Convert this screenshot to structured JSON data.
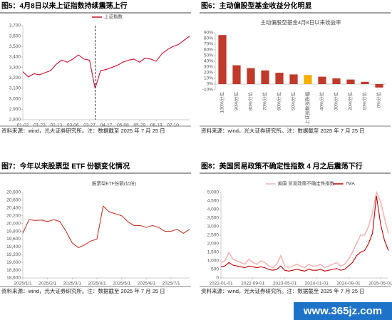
{
  "chart_data": [
    {
      "type": "line",
      "title": "图5：4月8日以来上证指数持续震荡上行",
      "categories": [
        "01-02",
        null,
        null,
        "01-23",
        null,
        null,
        "02-13",
        null,
        null,
        "03-06",
        null,
        null,
        "03-27",
        null,
        null,
        "04-17",
        null,
        null,
        "05-08",
        null,
        null,
        "05-29",
        null,
        null,
        "06-19",
        null,
        null,
        "07-10",
        null,
        null,
        null
      ],
      "series": [
        {
          "name": "上证指数",
          "color": "#c8102e",
          "values": [
            3260,
            3210,
            3240,
            3230,
            3250,
            3270,
            3330,
            3370,
            3350,
            3380,
            3420,
            3380,
            3370,
            3100,
            3270,
            3280,
            3300,
            3320,
            3350,
            3370,
            3380,
            3350,
            3390,
            3380,
            3360,
            3430,
            3470,
            3500,
            3520,
            3560,
            3600
          ]
        }
      ],
      "ylim": [
        2800,
        3700
      ],
      "yticks": [
        {
          "value": 2800,
          "label": "2,800"
        },
        {
          "value": 2900,
          "label": "2,900"
        },
        {
          "value": 3000,
          "label": "3,000"
        },
        {
          "value": 3100,
          "label": "3,100"
        },
        {
          "value": 3200,
          "label": "3,200"
        },
        {
          "value": 3300,
          "label": "3,300"
        },
        {
          "value": 3400,
          "label": "3,400"
        },
        {
          "value": 3500,
          "label": "3,500"
        },
        {
          "value": 3600,
          "label": "3,600"
        },
        {
          "value": 3700,
          "label": "3,700"
        }
      ],
      "source": "资料来源：wind，光大证券研究所。注：数据截至 2025 年 7 月 25 日"
    },
    {
      "type": "bar",
      "title": "图6：主动偏股型基金收益分化明显",
      "subtitle": "主动偏股型基金4月8日以来收益率",
      "categories": [
        "100%分位",
        "90%分位",
        "80%分位",
        "70%分位",
        "60%分位",
        "50%分位",
        "上证指数涨跌幅",
        "40%分位",
        "30%分位",
        "20%分位",
        "10%分位",
        "0%分位"
      ],
      "values": [
        86,
        33,
        28,
        24,
        20,
        17,
        16,
        13,
        10,
        8,
        4,
        -6
      ],
      "colors": [
        "#c0392b",
        "#c0392b",
        "#c0392b",
        "#c0392b",
        "#c0392b",
        "#c0392b",
        "#f5b000",
        "#c0392b",
        "#c0392b",
        "#c0392b",
        "#c0392b",
        "#c0392b"
      ],
      "ylim": [
        -10,
        90
      ],
      "yticks": [
        {
          "value": -10,
          "label": "-10%"
        },
        {
          "value": 0,
          "label": "0%"
        },
        {
          "value": 10,
          "label": "10%"
        },
        {
          "value": 20,
          "label": "20%"
        },
        {
          "value": 30,
          "label": "30%"
        },
        {
          "value": 40,
          "label": "40%"
        },
        {
          "value": 50,
          "label": "50%"
        },
        {
          "value": 60,
          "label": "60%"
        },
        {
          "value": 70,
          "label": "70%"
        },
        {
          "value": 80,
          "label": "80%"
        },
        {
          "value": 90,
          "label": "90%"
        }
      ],
      "source": "资料来源：wind，光大证券研究所。注：数据截至 2025 年 7 月 25 日"
    },
    {
      "type": "line",
      "title": "图7：今年以来股票型 ETF 份额变化情况",
      "categories": [
        "2025/1/1",
        null,
        null,
        null,
        "2025/2/1",
        null,
        null,
        null,
        "2025/3/1",
        null,
        null,
        null,
        "2025/4/1",
        null,
        null,
        null,
        "2025/5/1",
        null,
        null,
        null,
        "2025/6/1",
        null,
        null,
        null,
        "2025/7/1",
        null,
        null,
        null
      ],
      "series": [
        {
          "name": "股票型ETF份额(亿份)",
          "color": "#c0392b",
          "values": [
            19750,
            20100,
            20080,
            20090,
            20050,
            20100,
            20050,
            19800,
            19500,
            19380,
            19450,
            19550,
            19600,
            20450,
            20300,
            20250,
            20200,
            20050,
            19950,
            19950,
            19900,
            19950,
            19900,
            19800,
            19800,
            19850,
            19750,
            19850
          ]
        }
      ],
      "ylim": [
        18600,
        20800
      ],
      "yticks": [
        {
          "value": 18600,
          "label": "18,600"
        },
        {
          "value": 18800,
          "label": "18,800"
        },
        {
          "value": 19000,
          "label": "19,000"
        },
        {
          "value": 19200,
          "label": "19,200"
        },
        {
          "value": 19400,
          "label": "19,400"
        },
        {
          "value": 19600,
          "label": "19,600"
        },
        {
          "value": 19800,
          "label": "19,800"
        },
        {
          "value": 20000,
          "label": "20,000"
        },
        {
          "value": 20200,
          "label": "20,200"
        },
        {
          "value": 20400,
          "label": "20,400"
        },
        {
          "value": 20600,
          "label": "20,600"
        },
        {
          "value": 20800,
          "label": "20,800"
        }
      ],
      "source": "资料来源：wind，光大证券研究所。注：数据截至 2025 年 7 月 25 日"
    },
    {
      "type": "line",
      "title": "图8：美国贸易政策不确定性指数 4 月之后震荡下行",
      "categories": [
        "2022-01-01",
        null,
        null,
        null,
        null,
        null,
        null,
        null,
        "2022-09-01",
        null,
        null,
        null,
        null,
        null,
        null,
        null,
        "2023-05-01",
        null,
        null,
        null,
        null,
        null,
        null,
        null,
        "2024-01-01",
        null,
        null,
        null,
        null,
        null,
        null,
        null,
        "2024-09-01",
        null,
        null,
        null,
        null,
        null,
        null,
        null,
        "2025-05-01",
        null,
        null
      ],
      "series": [
        {
          "name": "美国 贸易政策不确定性指数",
          "color": "#f4b6b6",
          "values": [
            900,
            1000,
            1500,
            1100,
            1000,
            900,
            800,
            1100,
            900,
            800,
            1000,
            900,
            700,
            600,
            800,
            1300,
            700,
            600,
            700,
            800,
            700,
            600,
            800,
            700,
            700,
            800,
            600,
            700,
            800,
            900,
            700,
            800,
            1100,
            1500,
            2000,
            2500,
            2500,
            3000,
            3800,
            5000,
            4500,
            3500,
            2600
          ]
        },
        {
          "name": "7MA",
          "color": "#c00000",
          "values": [
            650,
            700,
            900,
            750,
            700,
            650,
            600,
            700,
            650,
            600,
            650,
            600,
            500,
            450,
            500,
            700,
            450,
            400,
            450,
            500,
            450,
            400,
            500,
            450,
            450,
            500,
            400,
            450,
            500,
            550,
            450,
            500,
            700,
            900,
            1300,
            1500,
            1600,
            2000,
            2600,
            4800,
            3200,
            2200,
            1600
          ]
        }
      ],
      "ylim": [
        0,
        5000
      ],
      "yticks": [
        0,
        {
          "value": 500,
          "label": "500"
        },
        {
          "value": 1000,
          "label": "1,000"
        },
        {
          "value": 1500,
          "label": "1,500"
        },
        {
          "value": 2000,
          "label": "2,000"
        },
        {
          "value": 2500,
          "label": "2,500"
        },
        {
          "value": 3000,
          "label": "3,000"
        },
        {
          "value": 3500,
          "label": "3,500"
        },
        {
          "value": 4000,
          "label": "4,000"
        },
        {
          "value": 4500,
          "label": "4,500"
        },
        {
          "value": 5000,
          "label": "5,000"
        }
      ],
      "source": "资料来源：wind，光大证券研究所。注：数据截至 2025 年 7 月 25 日"
    }
  ],
  "watermark": "www.365jz.com"
}
